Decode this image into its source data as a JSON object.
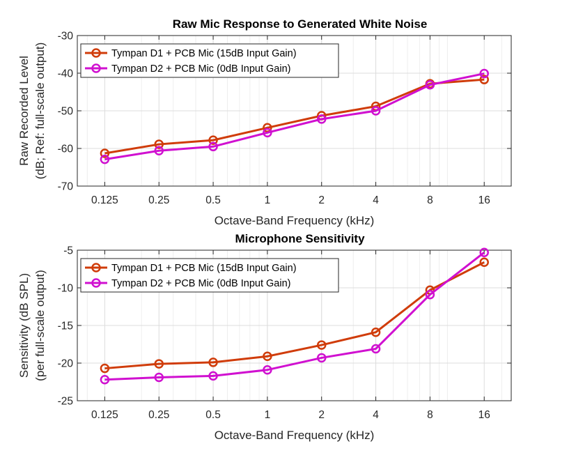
{
  "chart_data": [
    {
      "type": "line",
      "title": "Raw Mic Response to Generated White Noise",
      "xlabel": "Octave-Band Frequency (kHz)",
      "ylabel": [
        "Raw Recorded Level",
        "(dB; Ref: full-scale output)"
      ],
      "x_scale": "log2",
      "x": [
        0.125,
        0.25,
        0.5,
        1,
        2,
        4,
        8,
        16
      ],
      "x_tick_labels": [
        "0.125",
        "0.25",
        "0.5",
        "1",
        "2",
        "4",
        "8",
        "16"
      ],
      "xlim": [
        0.088,
        22.6
      ],
      "ylim": [
        -70,
        -30
      ],
      "y_ticks": [
        -70,
        -60,
        -50,
        -40,
        -30
      ],
      "y_tick_labels": [
        "-70",
        "-60",
        "-50",
        "-40",
        "-30"
      ],
      "grid": true,
      "legend_position": "top-left",
      "series": [
        {
          "name": "Tympan D1 + PCB Mic (15dB Input Gain)",
          "color": "#d03c0a",
          "values": [
            -61.3,
            -58.9,
            -57.8,
            -54.5,
            -51.3,
            -48.8,
            -42.8,
            -41.7
          ]
        },
        {
          "name": "Tympan D2 + PCB Mic (0dB Input Gain)",
          "color": "#d010d0",
          "values": [
            -62.9,
            -60.6,
            -59.5,
            -55.8,
            -52.2,
            -50.0,
            -43.1,
            -40.1
          ]
        }
      ]
    },
    {
      "type": "line",
      "title": "Microphone Sensitivity",
      "xlabel": "Octave-Band Frequency (kHz)",
      "ylabel": [
        "Sensitivity (dB SPL)",
        "(per full-scale output)"
      ],
      "x_scale": "log2",
      "x": [
        0.125,
        0.25,
        0.5,
        1,
        2,
        4,
        8,
        16
      ],
      "x_tick_labels": [
        "0.125",
        "0.25",
        "0.5",
        "1",
        "2",
        "4",
        "8",
        "16"
      ],
      "xlim": [
        0.088,
        22.6
      ],
      "ylim": [
        -25,
        -5
      ],
      "y_ticks": [
        -25,
        -20,
        -15,
        -10,
        -5
      ],
      "y_tick_labels": [
        "-25",
        "-20",
        "-15",
        "-10",
        "-5"
      ],
      "grid": true,
      "legend_position": "top-left",
      "series": [
        {
          "name": "Tympan D1 + PCB Mic (15dB Input Gain)",
          "color": "#d03c0a",
          "values": [
            -20.7,
            -20.1,
            -19.9,
            -19.1,
            -17.6,
            -15.9,
            -10.3,
            -6.6
          ]
        },
        {
          "name": "Tympan D2 + PCB Mic (0dB Input Gain)",
          "color": "#d010d0",
          "values": [
            -22.2,
            -21.9,
            -21.7,
            -20.9,
            -19.3,
            -18.1,
            -10.9,
            -5.3
          ]
        }
      ]
    }
  ]
}
